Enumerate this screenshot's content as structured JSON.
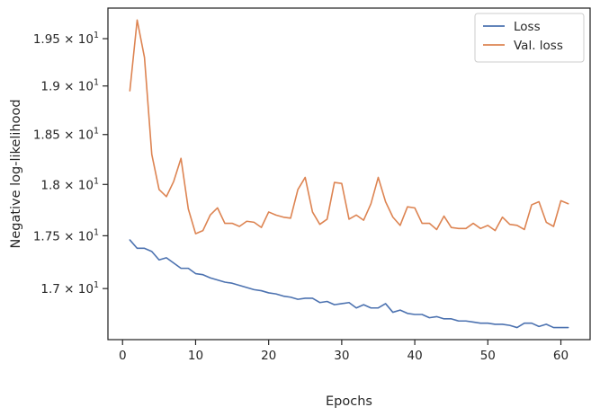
{
  "chart_data": {
    "type": "line",
    "xlabel": "Epochs",
    "ylabel": "Negative log-likelihood",
    "xlim": [
      -2.0,
      64.0
    ],
    "ylim": [
      16.53,
      19.83
    ],
    "yscale": "log",
    "grid": false,
    "legend_position": "top-right",
    "xticks": [
      0,
      10,
      20,
      30,
      40,
      50,
      60
    ],
    "yticks": [
      {
        "value": 17.0,
        "mantissa": "1.7"
      },
      {
        "value": 17.5,
        "mantissa": "1.75"
      },
      {
        "value": 18.0,
        "mantissa": "1.8"
      },
      {
        "value": 18.5,
        "mantissa": "1.85"
      },
      {
        "value": 19.0,
        "mantissa": "1.9"
      },
      {
        "value": 19.5,
        "mantissa": "1.95"
      }
    ],
    "ytick_multiplier": "× 10",
    "ytick_exponent": "1",
    "x": [
      1,
      2,
      3,
      4,
      5,
      6,
      7,
      8,
      9,
      10,
      11,
      12,
      13,
      14,
      15,
      16,
      17,
      18,
      19,
      20,
      21,
      22,
      23,
      24,
      25,
      26,
      27,
      28,
      29,
      30,
      31,
      32,
      33,
      34,
      35,
      36,
      37,
      38,
      39,
      40,
      41,
      42,
      43,
      44,
      45,
      46,
      47,
      48,
      49,
      50,
      51,
      52,
      53,
      54,
      55,
      56,
      57,
      58,
      59,
      60,
      61
    ],
    "series": [
      {
        "name": "Loss",
        "color": "#4c72b0",
        "values": [
          17.46,
          17.38,
          17.38,
          17.35,
          17.27,
          17.29,
          17.24,
          17.19,
          17.19,
          17.14,
          17.13,
          17.1,
          17.08,
          17.06,
          17.05,
          17.03,
          17.01,
          16.99,
          16.98,
          16.96,
          16.95,
          16.93,
          16.92,
          16.9,
          16.91,
          16.91,
          16.87,
          16.88,
          16.85,
          16.86,
          16.87,
          16.82,
          16.85,
          16.82,
          16.82,
          16.86,
          16.78,
          16.8,
          16.77,
          16.76,
          16.76,
          16.73,
          16.74,
          16.72,
          16.72,
          16.7,
          16.7,
          16.69,
          16.68,
          16.68,
          16.67,
          16.67,
          16.66,
          16.64,
          16.68,
          16.68,
          16.65,
          16.67,
          16.64,
          16.64,
          16.64
        ]
      },
      {
        "name": "Val. loss",
        "color": "#dd8452",
        "values": [
          18.95,
          19.7,
          19.3,
          18.3,
          17.95,
          17.88,
          18.03,
          18.26,
          17.76,
          17.52,
          17.55,
          17.7,
          17.77,
          17.62,
          17.62,
          17.59,
          17.64,
          17.63,
          17.58,
          17.73,
          17.7,
          17.68,
          17.67,
          17.95,
          18.07,
          17.73,
          17.61,
          17.66,
          18.02,
          18.01,
          17.66,
          17.7,
          17.65,
          17.81,
          18.07,
          17.83,
          17.68,
          17.6,
          17.78,
          17.77,
          17.62,
          17.62,
          17.56,
          17.69,
          17.58,
          17.57,
          17.57,
          17.62,
          17.57,
          17.6,
          17.55,
          17.68,
          17.61,
          17.6,
          17.56,
          17.8,
          17.83,
          17.63,
          17.59,
          17.84,
          17.81
        ]
      }
    ]
  }
}
